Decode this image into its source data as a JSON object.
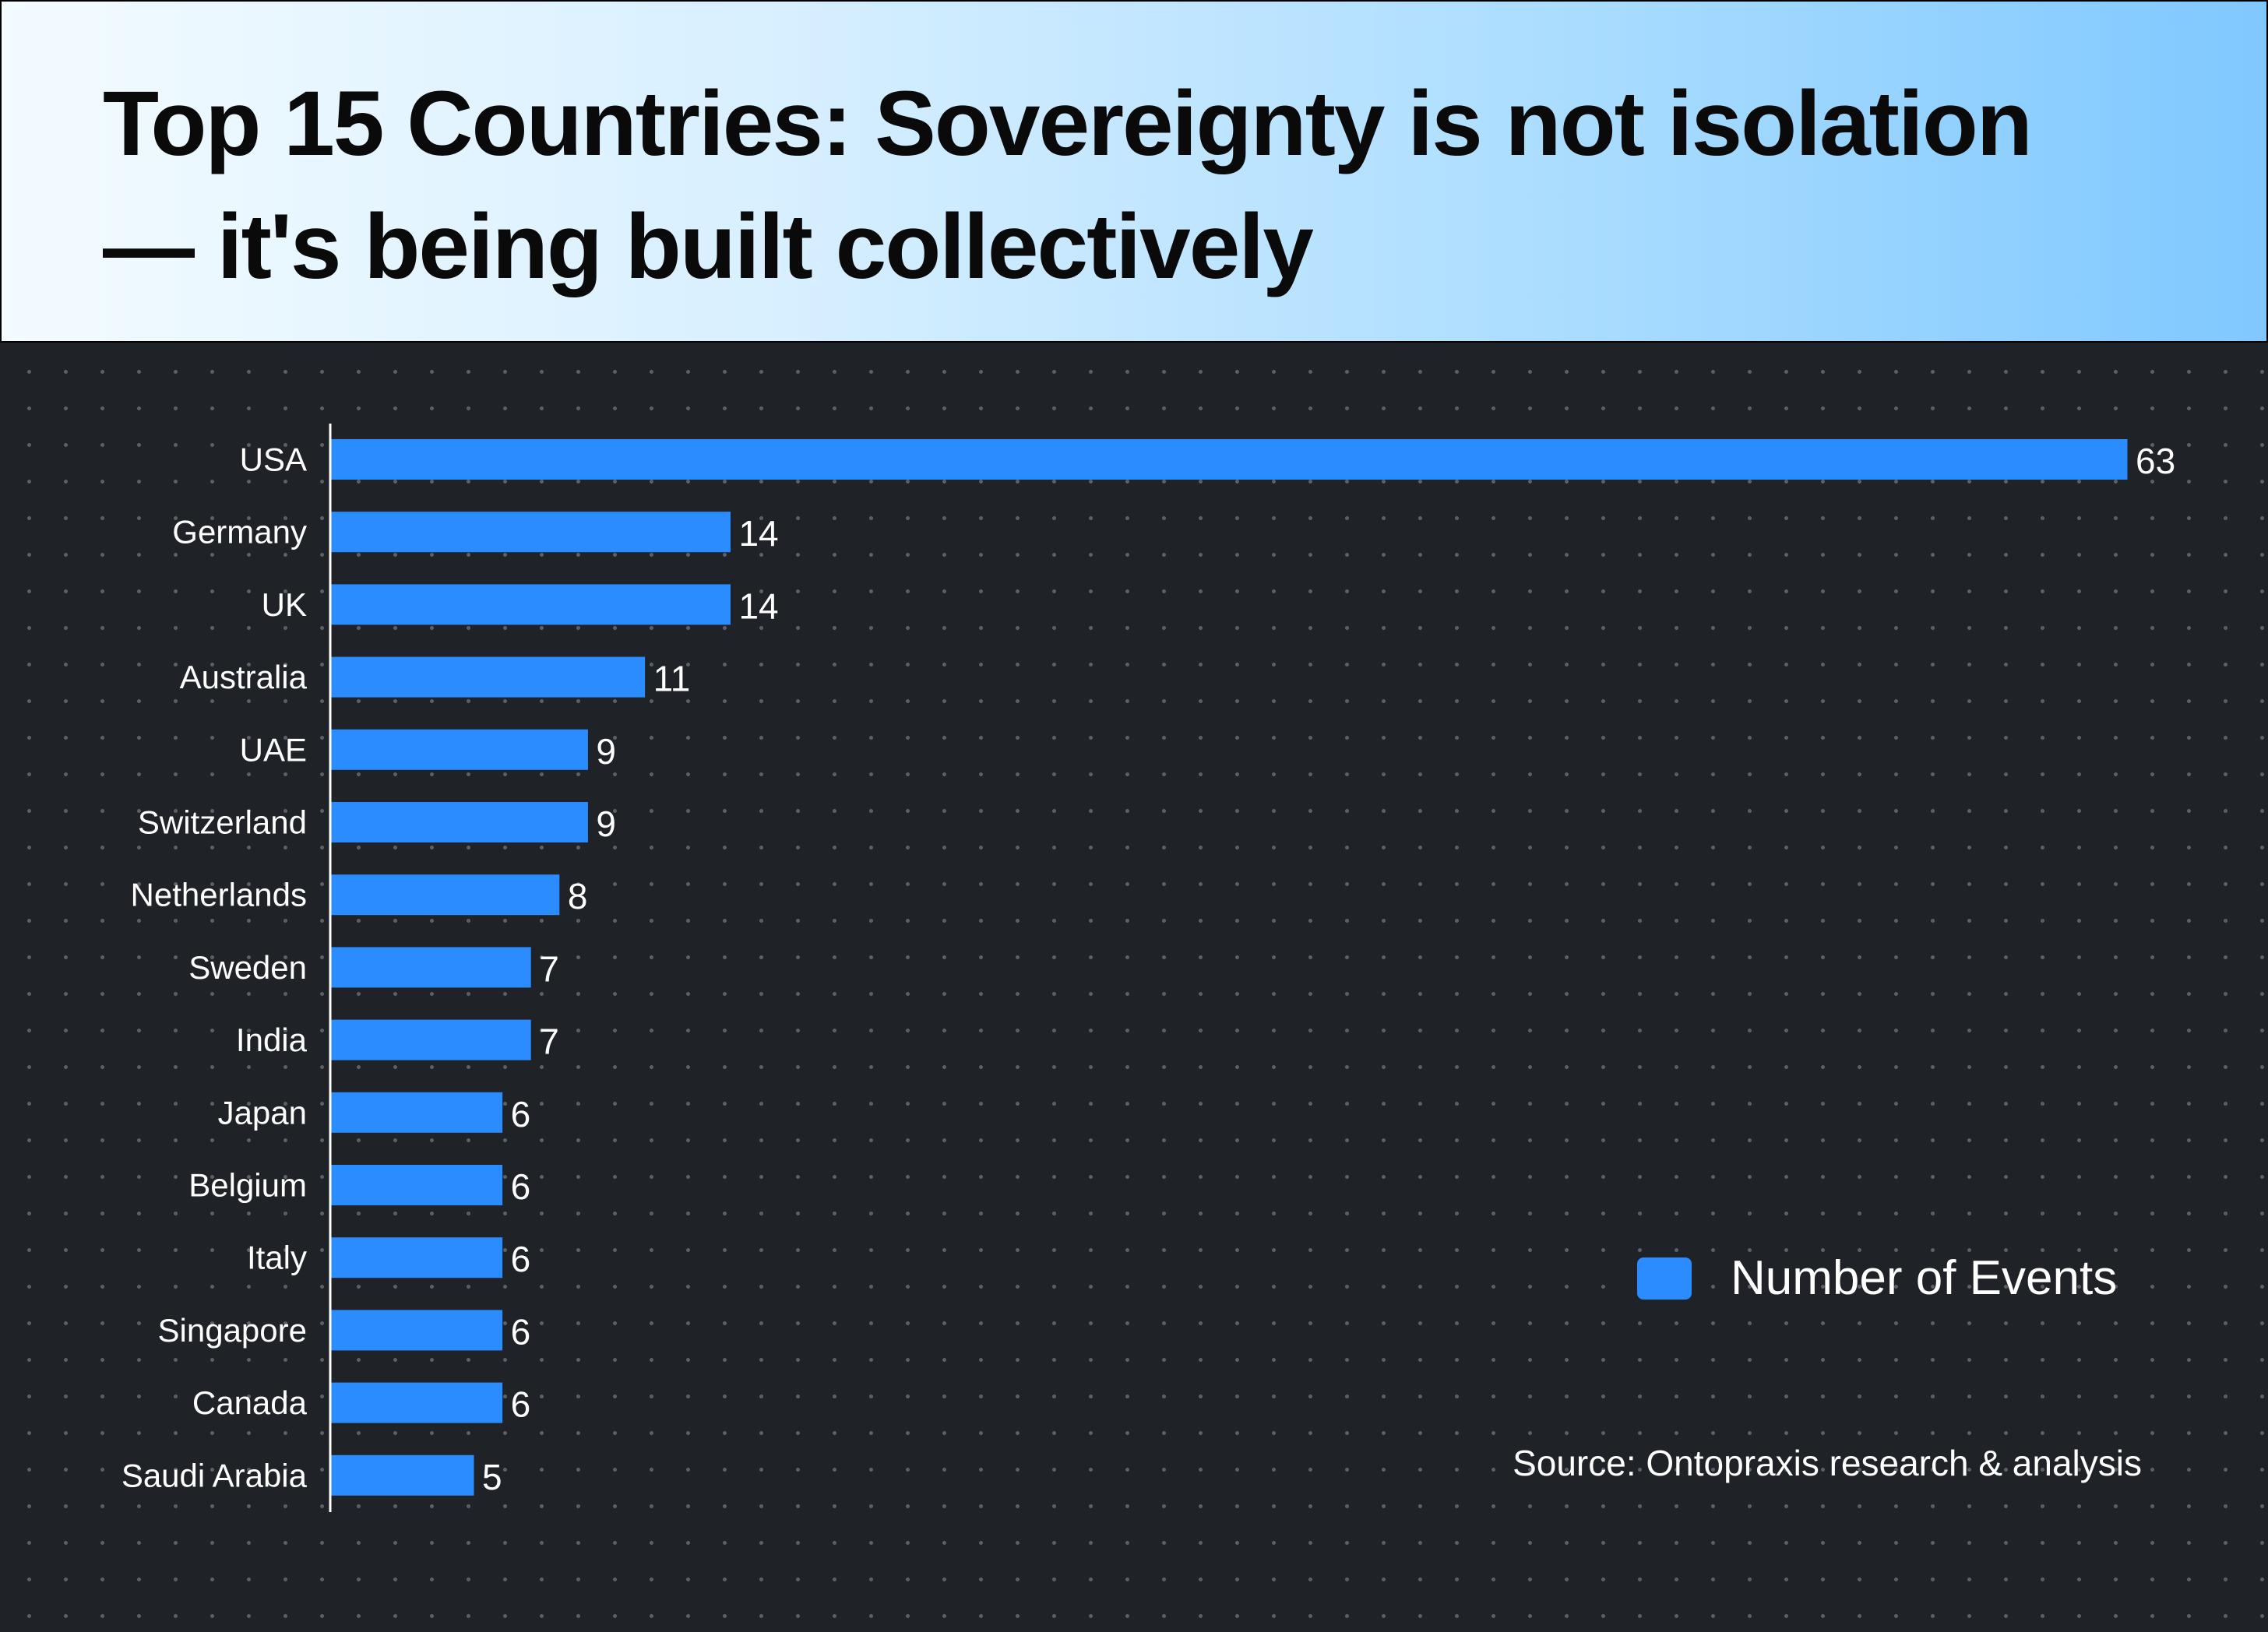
{
  "header": {
    "title": "Top 15 Countries: Sovereignty is not isolation — it's being built collectively"
  },
  "colors": {
    "bar": "#2b8cff",
    "background": "#1f2227",
    "axis": "#ffffff",
    "text": "#ffffff"
  },
  "legend": {
    "label": "Number of Events"
  },
  "source": {
    "text": "Source: Ontopraxis research & analysis"
  },
  "chart_data": {
    "type": "bar",
    "orientation": "horizontal",
    "title": "Top 15 Countries: Sovereignty is not isolation — it's being built collectively",
    "xlabel": "",
    "ylabel": "",
    "xlim": [
      0,
      63
    ],
    "grid": false,
    "legend_position": "bottom-right",
    "categories": [
      "USA",
      "Germany",
      "UK",
      "Australia",
      "UAE",
      "Switzerland",
      "Netherlands",
      "Sweden",
      "India",
      "Japan",
      "Belgium",
      "Italy",
      "Singapore",
      "Canada",
      "Saudi Arabia"
    ],
    "series": [
      {
        "name": "Number of Events",
        "values": [
          63,
          14,
          14,
          11,
          9,
          9,
          8,
          7,
          7,
          6,
          6,
          6,
          6,
          6,
          5
        ]
      }
    ]
  }
}
